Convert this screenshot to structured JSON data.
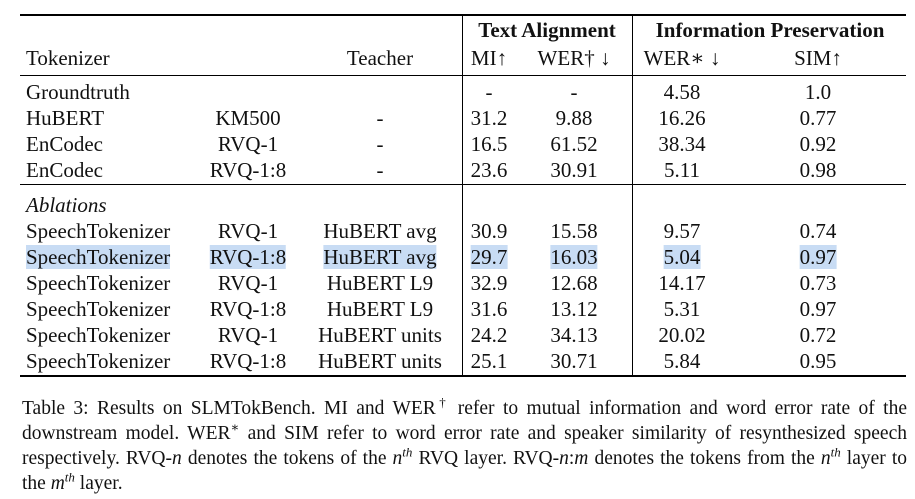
{
  "table": {
    "group_headers": {
      "text_alignment": "Text Alignment",
      "information_preservation": "Information Preservation"
    },
    "headers": {
      "tokenizer": "Tokenizer",
      "teacher": "Teacher",
      "mi": "MI↑",
      "wer_text": "WER† ↓",
      "wer_resyn": "WER∗ ↓",
      "sim": "SIM↑"
    },
    "sections": [
      {
        "rows": [
          {
            "tokenizer": "Groundtruth",
            "mi": "-",
            "wer_text": "-",
            "wer_resyn": 4.58,
            "sim": "1.0"
          },
          {
            "tokenizer": "HuBERT",
            "layers": "KM500",
            "teacher": "-",
            "mi": 31.2,
            "wer_text": 9.88,
            "wer_resyn": 16.26,
            "sim": 0.77
          },
          {
            "tokenizer": "EnCodec",
            "layers": "RVQ-1",
            "teacher": "-",
            "mi": 16.5,
            "wer_text": 61.52,
            "wer_resyn": 38.34,
            "sim": 0.92
          },
          {
            "tokenizer": "EnCodec",
            "layers": "RVQ-1:8",
            "teacher": "-",
            "mi": 23.6,
            "wer_text": 30.91,
            "wer_resyn": 5.11,
            "sim": 0.98
          }
        ]
      },
      {
        "title": "Ablations",
        "rows": [
          {
            "tokenizer": "SpeechTokenizer",
            "layers": "RVQ-1",
            "teacher": "HuBERT avg",
            "mi": 30.9,
            "wer_text": 15.58,
            "wer_resyn": 9.57,
            "sim": 0.74
          },
          {
            "tokenizer": "SpeechTokenizer",
            "layers": "RVQ-1:8",
            "teacher": "HuBERT avg",
            "mi": 29.7,
            "wer_text": 16.03,
            "wer_resyn": 5.04,
            "sim": 0.97,
            "highlighted": true
          },
          {
            "tokenizer": "SpeechTokenizer",
            "layers": "RVQ-1",
            "teacher": "HuBERT L9",
            "mi": 32.9,
            "wer_text": 12.68,
            "wer_resyn": 14.17,
            "sim": 0.73
          },
          {
            "tokenizer": "SpeechTokenizer",
            "layers": "RVQ-1:8",
            "teacher": "HuBERT L9",
            "mi": 31.6,
            "wer_text": 13.12,
            "wer_resyn": 5.31,
            "sim": 0.97
          },
          {
            "tokenizer": "SpeechTokenizer",
            "layers": "RVQ-1",
            "teacher": "HuBERT units",
            "mi": 24.2,
            "wer_text": 34.13,
            "wer_resyn": 20.02,
            "sim": 0.72
          },
          {
            "tokenizer": "SpeechTokenizer",
            "layers": "RVQ-1:8",
            "teacher": "HuBERT units",
            "mi": 25.1,
            "wer_text": 30.71,
            "wer_resyn": 5.84,
            "sim": 0.95
          }
        ]
      }
    ],
    "caption": [
      {
        "text": "Table 3: Results on SLMTokBench. MI and WER"
      },
      {
        "text": "†",
        "style": "sup"
      },
      {
        "text": " refer to mutual information and word error rate of the downstream model. WER"
      },
      {
        "text": "∗",
        "style": "sup"
      },
      {
        "text": " and SIM refer to word error rate and speaker similarity of resynthesized speech respectively. RVQ-"
      },
      {
        "text": "n",
        "style": "italic"
      },
      {
        "text": " denotes the tokens of the "
      },
      {
        "text": "n",
        "style": "italic"
      },
      {
        "text": "th",
        "style": "sup-italic"
      },
      {
        "text": " RVQ layer. RVQ-"
      },
      {
        "text": "n",
        "style": "italic"
      },
      {
        "text": ":"
      },
      {
        "text": "m",
        "style": "italic"
      },
      {
        "text": " denotes the tokens from the "
      },
      {
        "text": "n",
        "style": "italic"
      },
      {
        "text": "th",
        "style": "sup-italic"
      },
      {
        "text": " layer to the "
      },
      {
        "text": "m",
        "style": "italic"
      },
      {
        "text": "th",
        "style": "sup-italic"
      },
      {
        "text": " layer."
      }
    ]
  }
}
